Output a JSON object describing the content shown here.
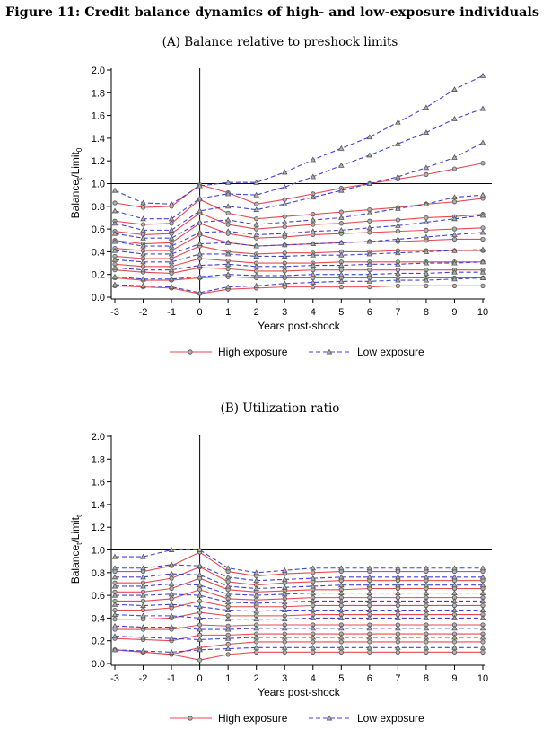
{
  "figure": {
    "title": "Figure 11: Credit balance dynamics of high- and low-exposure individuals"
  },
  "chart_data": [
    {
      "type": "line",
      "panel_title": "(A) Balance relative to preshock limits",
      "xlabel": "Years post-shock",
      "ylabel": "Balance",
      "ylabel_tail": "/Limit",
      "ylabel_sub1": "t",
      "ylabel_sub2": "0",
      "x": [
        -3,
        -2,
        -1,
        0,
        1,
        2,
        3,
        4,
        5,
        6,
        7,
        8,
        9,
        10
      ],
      "xticks": [
        "-3",
        "-2",
        "-1",
        "0",
        "1",
        "2",
        "3",
        "4",
        "5",
        "6",
        "7",
        "8",
        "9",
        "10"
      ],
      "yticks": [
        "0.0",
        "0.2",
        "0.4",
        "0.6",
        "0.8",
        "1.0",
        "1.2",
        "1.4",
        "1.6",
        "1.8",
        "2.0"
      ],
      "ylim": [
        0,
        2.0
      ],
      "reference_lines": {
        "x": 0,
        "y": 1.0
      },
      "grid": false,
      "legend": {
        "position": "bottom",
        "entries": [
          "High exposure",
          "Low exposure"
        ]
      },
      "colors": {
        "high": "#e8494f",
        "low": "#4040d8",
        "marker_edge": "#555555",
        "marker_fill": "#b0b0b0"
      },
      "series": [
        {
          "group": "high",
          "values": [
            0.83,
            0.79,
            0.8,
            0.99,
            0.92,
            0.82,
            0.86,
            0.91,
            0.96,
            1.0,
            1.04,
            1.08,
            1.13,
            1.18
          ]
        },
        {
          "group": "high",
          "values": [
            0.67,
            0.64,
            0.65,
            0.86,
            0.74,
            0.69,
            0.71,
            0.73,
            0.75,
            0.77,
            0.79,
            0.82,
            0.84,
            0.87
          ]
        },
        {
          "group": "high",
          "values": [
            0.58,
            0.55,
            0.56,
            0.74,
            0.64,
            0.6,
            0.62,
            0.64,
            0.65,
            0.67,
            0.68,
            0.7,
            0.71,
            0.73
          ]
        },
        {
          "group": "high",
          "values": [
            0.5,
            0.47,
            0.48,
            0.65,
            0.56,
            0.52,
            0.53,
            0.55,
            0.56,
            0.57,
            0.58,
            0.59,
            0.6,
            0.61
          ]
        },
        {
          "group": "high",
          "values": [
            0.43,
            0.41,
            0.41,
            0.55,
            0.48,
            0.45,
            0.46,
            0.47,
            0.48,
            0.49,
            0.49,
            0.5,
            0.51,
            0.51
          ]
        },
        {
          "group": "high",
          "values": [
            0.36,
            0.34,
            0.34,
            0.45,
            0.4,
            0.38,
            0.39,
            0.39,
            0.4,
            0.4,
            0.41,
            0.41,
            0.41,
            0.41
          ]
        },
        {
          "group": "high",
          "values": [
            0.29,
            0.27,
            0.27,
            0.34,
            0.32,
            0.3,
            0.3,
            0.3,
            0.31,
            0.31,
            0.31,
            0.31,
            0.31,
            0.31
          ]
        },
        {
          "group": "high",
          "values": [
            0.24,
            0.22,
            0.21,
            0.26,
            0.25,
            0.23,
            0.23,
            0.24,
            0.24,
            0.24,
            0.24,
            0.24,
            0.24,
            0.24
          ]
        },
        {
          "group": "high",
          "values": [
            0.17,
            0.15,
            0.15,
            0.17,
            0.18,
            0.17,
            0.17,
            0.17,
            0.17,
            0.17,
            0.17,
            0.17,
            0.17,
            0.17
          ]
        },
        {
          "group": "high",
          "values": [
            0.1,
            0.09,
            0.08,
            0.03,
            0.07,
            0.08,
            0.09,
            0.09,
            0.09,
            0.09,
            0.1,
            0.1,
            0.1,
            0.1
          ]
        },
        {
          "group": "low",
          "values": [
            0.94,
            0.83,
            0.82,
            0.98,
            1.01,
            1.01,
            1.1,
            1.21,
            1.31,
            1.41,
            1.54,
            1.67,
            1.83,
            1.95
          ]
        },
        {
          "group": "low",
          "values": [
            0.76,
            0.69,
            0.69,
            0.87,
            0.91,
            0.9,
            0.97,
            1.06,
            1.16,
            1.25,
            1.35,
            1.45,
            1.57,
            1.66
          ]
        },
        {
          "group": "low",
          "values": [
            0.65,
            0.59,
            0.59,
            0.76,
            0.8,
            0.77,
            0.82,
            0.88,
            0.94,
            1.0,
            1.06,
            1.14,
            1.23,
            1.36
          ]
        },
        {
          "group": "low",
          "values": [
            0.56,
            0.52,
            0.52,
            0.66,
            0.68,
            0.64,
            0.66,
            0.68,
            0.7,
            0.74,
            0.78,
            0.82,
            0.88,
            0.9
          ]
        },
        {
          "group": "low",
          "values": [
            0.49,
            0.45,
            0.45,
            0.57,
            0.58,
            0.55,
            0.56,
            0.58,
            0.59,
            0.61,
            0.63,
            0.66,
            0.69,
            0.72
          ]
        },
        {
          "group": "low",
          "values": [
            0.41,
            0.38,
            0.38,
            0.47,
            0.48,
            0.45,
            0.46,
            0.47,
            0.48,
            0.49,
            0.51,
            0.53,
            0.55,
            0.57
          ]
        },
        {
          "group": "low",
          "values": [
            0.33,
            0.31,
            0.31,
            0.38,
            0.38,
            0.36,
            0.36,
            0.37,
            0.37,
            0.38,
            0.39,
            0.4,
            0.41,
            0.42
          ]
        },
        {
          "group": "low",
          "values": [
            0.26,
            0.24,
            0.24,
            0.28,
            0.29,
            0.27,
            0.27,
            0.28,
            0.28,
            0.29,
            0.29,
            0.3,
            0.3,
            0.31
          ]
        },
        {
          "group": "low",
          "values": [
            0.18,
            0.16,
            0.16,
            0.18,
            0.2,
            0.19,
            0.19,
            0.2,
            0.2,
            0.2,
            0.21,
            0.21,
            0.22,
            0.22
          ]
        },
        {
          "group": "low",
          "values": [
            0.11,
            0.1,
            0.09,
            0.04,
            0.09,
            0.1,
            0.12,
            0.13,
            0.14,
            0.14,
            0.15,
            0.15,
            0.16,
            0.17
          ]
        }
      ]
    },
    {
      "type": "line",
      "panel_title": "(B) Utilization ratio",
      "xlabel": "Years post-shock",
      "ylabel": "Balance",
      "ylabel_tail": "/Limit",
      "ylabel_sub1": "t",
      "ylabel_sub2": "t",
      "x": [
        -3,
        -2,
        -1,
        0,
        1,
        2,
        3,
        4,
        5,
        6,
        7,
        8,
        9,
        10
      ],
      "xticks": [
        "-3",
        "-2",
        "-1",
        "0",
        "1",
        "2",
        "3",
        "4",
        "5",
        "6",
        "7",
        "8",
        "9",
        "10"
      ],
      "yticks": [
        "0.0",
        "0.2",
        "0.4",
        "0.6",
        "0.8",
        "1.0",
        "1.2",
        "1.4",
        "1.6",
        "1.8",
        "2.0"
      ],
      "ylim": [
        0,
        2.0
      ],
      "reference_lines": {
        "x": 0,
        "y": 1.0
      },
      "grid": false,
      "legend": {
        "position": "bottom",
        "entries": [
          "High exposure",
          "Low exposure"
        ]
      },
      "colors": {
        "high": "#e8494f",
        "low": "#4040d8",
        "marker_edge": "#555555",
        "marker_fill": "#b0b0b0"
      },
      "series": [
        {
          "group": "high",
          "values": [
            0.81,
            0.81,
            0.86,
            0.98,
            0.81,
            0.77,
            0.79,
            0.8,
            0.81,
            0.81,
            0.81,
            0.81,
            0.81,
            0.81
          ]
        },
        {
          "group": "high",
          "values": [
            0.71,
            0.71,
            0.75,
            0.85,
            0.72,
            0.69,
            0.71,
            0.72,
            0.73,
            0.73,
            0.73,
            0.73,
            0.73,
            0.73
          ]
        },
        {
          "group": "high",
          "values": [
            0.63,
            0.63,
            0.66,
            0.75,
            0.65,
            0.63,
            0.64,
            0.65,
            0.65,
            0.66,
            0.66,
            0.66,
            0.66,
            0.66
          ]
        },
        {
          "group": "high",
          "values": [
            0.55,
            0.55,
            0.57,
            0.65,
            0.57,
            0.56,
            0.57,
            0.58,
            0.58,
            0.58,
            0.58,
            0.58,
            0.58,
            0.58
          ]
        },
        {
          "group": "high",
          "values": [
            0.47,
            0.47,
            0.49,
            0.55,
            0.5,
            0.5,
            0.5,
            0.51,
            0.51,
            0.51,
            0.51,
            0.51,
            0.51,
            0.51
          ]
        },
        {
          "group": "high",
          "values": [
            0.39,
            0.39,
            0.4,
            0.45,
            0.42,
            0.42,
            0.42,
            0.43,
            0.43,
            0.43,
            0.43,
            0.43,
            0.43,
            0.43
          ]
        },
        {
          "group": "high",
          "values": [
            0.3,
            0.3,
            0.3,
            0.34,
            0.33,
            0.34,
            0.34,
            0.34,
            0.34,
            0.34,
            0.34,
            0.34,
            0.34,
            0.34
          ]
        },
        {
          "group": "high",
          "values": [
            0.22,
            0.21,
            0.2,
            0.25,
            0.25,
            0.26,
            0.26,
            0.26,
            0.26,
            0.26,
            0.26,
            0.26,
            0.26,
            0.26
          ]
        },
        {
          "group": "high",
          "values": [
            0.12,
            0.1,
            0.08,
            0.14,
            0.17,
            0.19,
            0.19,
            0.19,
            0.19,
            0.19,
            0.19,
            0.19,
            0.19,
            0.19
          ]
        },
        {
          "group": "high",
          "values": [
            0.12,
            0.1,
            0.08,
            0.03,
            0.08,
            0.1,
            0.1,
            0.1,
            0.1,
            0.1,
            0.1,
            0.1,
            0.1,
            0.1
          ]
        },
        {
          "group": "low",
          "values": [
            0.94,
            0.94,
            1.0,
            1.0,
            0.84,
            0.8,
            0.82,
            0.84,
            0.84,
            0.84,
            0.84,
            0.84,
            0.84,
            0.84
          ]
        },
        {
          "group": "low",
          "values": [
            0.84,
            0.84,
            0.87,
            0.86,
            0.76,
            0.73,
            0.74,
            0.75,
            0.76,
            0.76,
            0.76,
            0.76,
            0.76,
            0.76
          ]
        },
        {
          "group": "low",
          "values": [
            0.76,
            0.76,
            0.79,
            0.78,
            0.68,
            0.66,
            0.67,
            0.68,
            0.69,
            0.69,
            0.69,
            0.69,
            0.69,
            0.69
          ]
        },
        {
          "group": "low",
          "values": [
            0.68,
            0.68,
            0.7,
            0.69,
            0.61,
            0.6,
            0.61,
            0.62,
            0.62,
            0.62,
            0.62,
            0.62,
            0.62,
            0.62
          ]
        },
        {
          "group": "low",
          "values": [
            0.6,
            0.6,
            0.61,
            0.6,
            0.54,
            0.53,
            0.54,
            0.55,
            0.55,
            0.55,
            0.55,
            0.55,
            0.55,
            0.55
          ]
        },
        {
          "group": "low",
          "values": [
            0.52,
            0.51,
            0.52,
            0.5,
            0.47,
            0.46,
            0.47,
            0.47,
            0.47,
            0.47,
            0.47,
            0.47,
            0.47,
            0.47
          ]
        },
        {
          "group": "low",
          "values": [
            0.43,
            0.42,
            0.42,
            0.4,
            0.39,
            0.39,
            0.39,
            0.4,
            0.4,
            0.4,
            0.4,
            0.4,
            0.4,
            0.4
          ]
        },
        {
          "group": "low",
          "values": [
            0.33,
            0.32,
            0.32,
            0.3,
            0.3,
            0.31,
            0.31,
            0.31,
            0.31,
            0.31,
            0.31,
            0.31,
            0.31,
            0.31
          ]
        },
        {
          "group": "low",
          "values": [
            0.24,
            0.23,
            0.22,
            0.21,
            0.22,
            0.23,
            0.23,
            0.23,
            0.23,
            0.23,
            0.23,
            0.23,
            0.23,
            0.23
          ]
        },
        {
          "group": "low",
          "values": [
            0.12,
            0.11,
            0.1,
            0.12,
            0.13,
            0.14,
            0.14,
            0.14,
            0.14,
            0.14,
            0.14,
            0.14,
            0.14,
            0.14
          ]
        }
      ]
    }
  ]
}
